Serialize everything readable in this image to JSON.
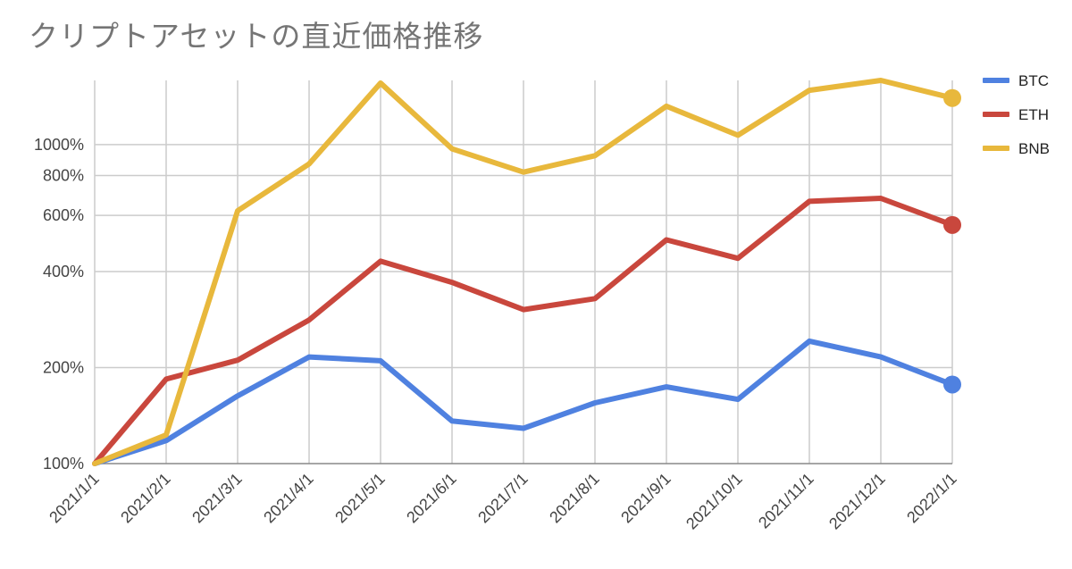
{
  "chart_data": {
    "type": "line",
    "title": "クリプトアセットの直近価格推移",
    "xlabel": "",
    "ylabel": "",
    "yscale": "log",
    "ylim": [
      100,
      1590
    ],
    "ytick_values": [
      100,
      200,
      400,
      600,
      800,
      1000
    ],
    "ytick_labels": [
      "100%",
      "200%",
      "400%",
      "600%",
      "800%",
      "1000%"
    ],
    "categories": [
      "2021/1/1",
      "2021/2/1",
      "2021/3/1",
      "2021/4/1",
      "2021/5/1",
      "2021/6/1",
      "2021/7/1",
      "2021/8/1",
      "2021/9/1",
      "2021/10/1",
      "2021/11/1",
      "2021/12/1",
      "2022/1/1"
    ],
    "legend_position": "right",
    "series": [
      {
        "name": "BTC",
        "color": "#4f81e0",
        "values": [
          100,
          118,
          163,
          216,
          210,
          136,
          129,
          155,
          174,
          159,
          242,
          216,
          177
        ]
      },
      {
        "name": "ETH",
        "color": "#c9473d",
        "values": [
          100,
          184,
          211,
          282,
          431,
          370,
          304,
          329,
          503,
          440,
          664,
          679,
          560
        ]
      },
      {
        "name": "BNB",
        "color": "#e8b83c",
        "values": [
          100,
          123,
          620,
          870,
          1560,
          970,
          820,
          923,
          1320,
          1070,
          1480,
          1590,
          1400
        ]
      }
    ]
  }
}
